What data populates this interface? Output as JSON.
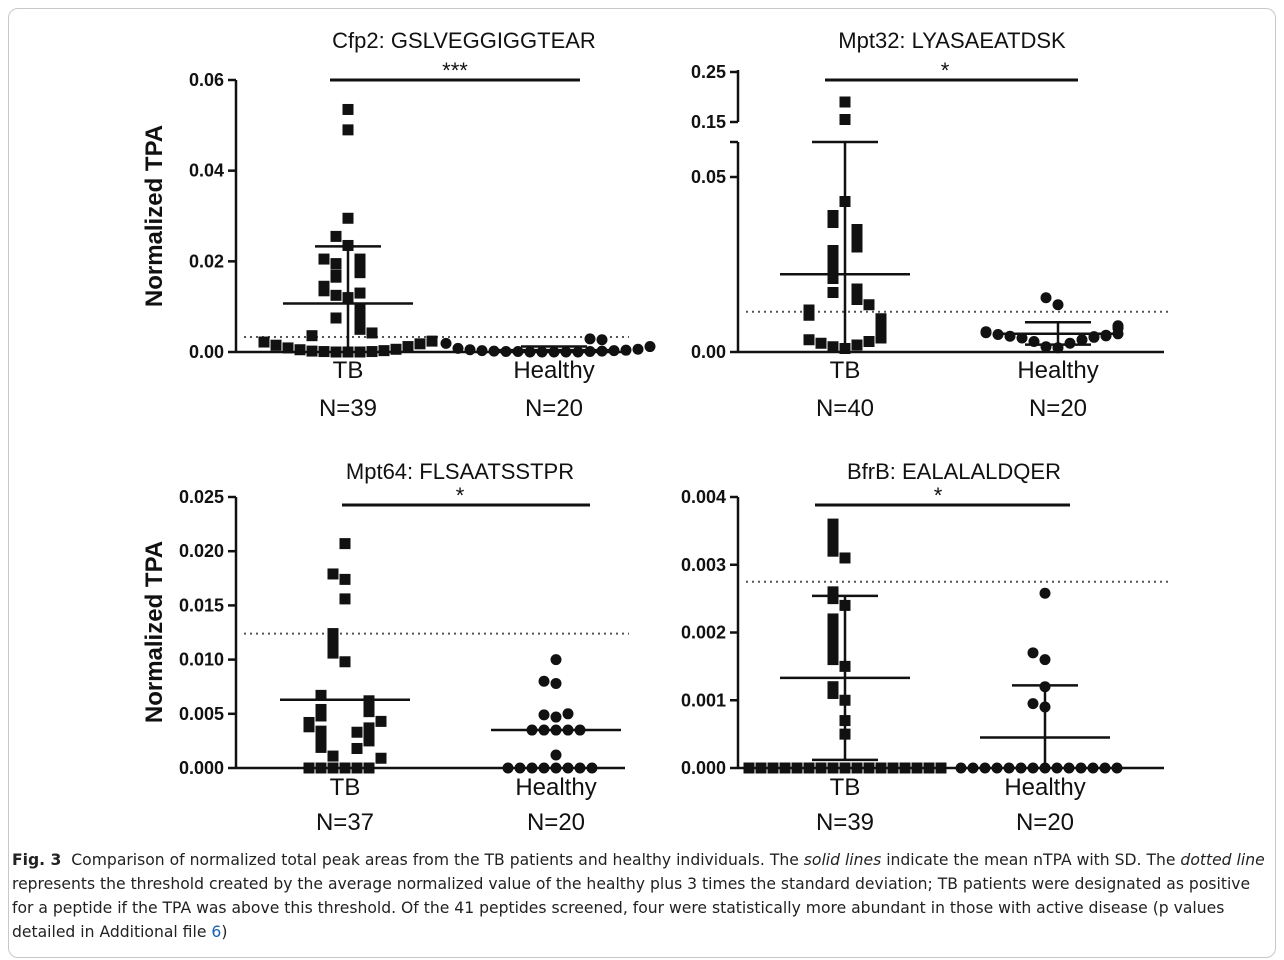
{
  "figure": {
    "caption_label": "Fig. 3",
    "caption_part1": "Comparison of normalized total peak areas from the TB patients and healthy individuals. The ",
    "caption_italic1": "solid lines",
    "caption_part2": " indicate the mean nTPA with SD. The ",
    "caption_italic2": "dotted line",
    "caption_part3": " represents the threshold created by the average normalized value of the healthy plus 3 times the standard deviation; TB patients were designated as positive for a peptide if the TPA was above this threshold. Of the 41 peptides screened, four were statistically more abundant in those with active disease (p values detailed in Additional file ",
    "caption_link": "6",
    "caption_part4": ")"
  },
  "chart_data": [
    {
      "type": "scatter",
      "title": "Cfp2: GSLVEGGIGGTEAR",
      "ylabel": "Normalized TPA",
      "ylim": [
        0,
        0.06
      ],
      "yticks": [
        "0.00",
        "0.02",
        "0.04",
        "0.06"
      ],
      "ytick_values": [
        0,
        0.02,
        0.04,
        0.06
      ],
      "categories": [
        "TB",
        "Healthy"
      ],
      "n_labels": [
        "N=39",
        "N=20"
      ],
      "significance": "***",
      "threshold": 0.0033,
      "colors": {
        "points": "#111111",
        "threshold": "#555555"
      },
      "series": [
        {
          "marker": "square",
          "values": [
            0.0535,
            0.049,
            0.0295,
            0.0255,
            0.0235,
            0.0205,
            0.0205,
            0.0195,
            0.0195,
            0.0175,
            0.017,
            0.0165,
            0.0145,
            0.0135,
            0.013,
            0.0125,
            0.012,
            0.0095,
            0.0085,
            0.0075,
            0.0065,
            0.005,
            0.0042,
            0.0036,
            0.0024,
            0.0022,
            0.0018,
            0.0015,
            0.0012,
            0.0009,
            0.0006,
            0.0005,
            0.0003,
            0.0002,
            0.0001,
            0.0001,
            0.0,
            0.0,
            0.0
          ],
          "mean": 0.0107,
          "sd_low": 0.0,
          "sd_high": 0.0233
        },
        {
          "marker": "circle",
          "values": [
            0.0029,
            0.0027,
            0.0019,
            0.0012,
            0.0008,
            0.0006,
            0.0005,
            0.0004,
            0.0003,
            0.0003,
            0.0002,
            0.0002,
            0.0001,
            0.0001,
            0.0001,
            0.0,
            0.0,
            0.0,
            0.0,
            0.0
          ],
          "mean": 0.0004,
          "sd_low": 0.0,
          "sd_high": 0.0012
        }
      ]
    },
    {
      "type": "scatter",
      "title": "Mpt32: LYASAEATDSK",
      "ylabel": "",
      "ylim": [
        0,
        0.25
      ],
      "broken_axis": {
        "lower": [
          0,
          0.06
        ],
        "upper": [
          0.12,
          0.25
        ]
      },
      "yticks": [
        "0.00",
        "0.05",
        "0.15",
        "0.25"
      ],
      "ytick_values": [
        0,
        0.05,
        0.15,
        0.25
      ],
      "categories": [
        "TB",
        "Healthy"
      ],
      "n_labels": [
        "N=40",
        "N=20"
      ],
      "significance": "*",
      "threshold": 0.0115,
      "colors": {
        "points": "#111111",
        "threshold": "#555555"
      },
      "series": [
        {
          "marker": "square",
          "values": [
            0.19,
            0.155,
            0.043,
            0.039,
            0.037,
            0.035,
            0.033,
            0.032,
            0.03,
            0.029,
            0.028,
            0.025,
            0.024,
            0.021,
            0.018,
            0.017,
            0.015,
            0.0135,
            0.012,
            0.0115,
            0.011,
            0.0105,
            0.0095,
            0.009,
            0.0085,
            0.008,
            0.0075,
            0.007,
            0.0065,
            0.006,
            0.0055,
            0.005,
            0.0045,
            0.004,
            0.0035,
            0.003,
            0.0025,
            0.002,
            0.0015,
            0.001
          ],
          "mean": 0.0222,
          "sd_low": -0.0005,
          "sd_high": 0.06
        },
        {
          "marker": "circle",
          "values": [
            0.0155,
            0.0135,
            0.0075,
            0.0072,
            0.0068,
            0.0058,
            0.0055,
            0.0052,
            0.005,
            0.0048,
            0.0046,
            0.0045,
            0.0044,
            0.0042,
            0.004,
            0.0035,
            0.003,
            0.0025,
            0.0015,
            0.0012
          ],
          "mean": 0.0052,
          "sd_low": 0.0021,
          "sd_high": 0.0085
        }
      ]
    },
    {
      "type": "scatter",
      "title": "Mpt64: FLSAATSSTPR",
      "ylabel": "Normalized TPA",
      "ylim": [
        0,
        0.025
      ],
      "yticks": [
        "0.000",
        "0.005",
        "0.010",
        "0.015",
        "0.020",
        "0.025"
      ],
      "ytick_values": [
        0,
        0.005,
        0.01,
        0.015,
        0.02,
        0.025
      ],
      "categories": [
        "TB",
        "Healthy"
      ],
      "n_labels": [
        "N=37",
        "N=20"
      ],
      "significance": "*",
      "threshold": 0.0124,
      "colors": {
        "points": "#111111",
        "threshold": "#555555"
      },
      "series": [
        {
          "marker": "square",
          "values": [
            0.0207,
            0.0179,
            0.0174,
            0.0156,
            0.0124,
            0.0114,
            0.0106,
            0.0098,
            0.0067,
            0.0062,
            0.0059,
            0.0058,
            0.0054,
            0.0052,
            0.005,
            0.0048,
            0.0043,
            0.0042,
            0.0038,
            0.0037,
            0.0035,
            0.0034,
            0.0033,
            0.003,
            0.0025,
            0.0022,
            0.002,
            0.0019,
            0.0018,
            0.0011,
            0.0009,
            0.0,
            0.0,
            0.0,
            0.0,
            0.0,
            0.0
          ],
          "mean": 0.0063,
          "sd_low": 0.0,
          "sd_high": 0.0
        },
        {
          "marker": "circle",
          "values": [
            0.01,
            0.008,
            0.0078,
            0.005,
            0.0049,
            0.0047,
            0.0035,
            0.0035,
            0.0035,
            0.0035,
            0.0035,
            0.0012,
            0.0,
            0.0,
            0.0,
            0.0,
            0.0,
            0.0,
            0.0,
            0.0
          ],
          "mean": 0.0035,
          "sd_low": 0.0,
          "sd_high": 0.0
        }
      ]
    },
    {
      "type": "scatter",
      "title": "BfrB: EALALALDQER",
      "ylabel": "",
      "ylim": [
        0,
        0.004
      ],
      "yticks": [
        "0.000",
        "0.001",
        "0.002",
        "0.003",
        "0.004"
      ],
      "ytick_values": [
        0,
        0.001,
        0.002,
        0.003,
        0.004
      ],
      "categories": [
        "TB",
        "Healthy"
      ],
      "n_labels": [
        "N=39",
        "N=20"
      ],
      "significance": "*",
      "threshold": 0.00275,
      "colors": {
        "points": "#111111",
        "threshold": "#555555"
      },
      "series": [
        {
          "marker": "square",
          "values": [
            0.0036,
            0.0035,
            0.0034,
            0.0033,
            0.0032,
            0.0031,
            0.0026,
            0.0025,
            0.0024,
            0.0022,
            0.0021,
            0.002,
            0.0019,
            0.0018,
            0.0017,
            0.0016,
            0.0015,
            0.0012,
            0.0011,
            0.001,
            0.0007,
            0.0005,
            0.0,
            0.0,
            0.0,
            0.0,
            0.0,
            0.0,
            0.0,
            0.0,
            0.0,
            0.0,
            0.0,
            0.0,
            0.0,
            0.0,
            0.0,
            0.0,
            0.0
          ],
          "mean": 0.00133,
          "sd_low": 0.00012,
          "sd_high": 0.00254
        },
        {
          "marker": "circle",
          "values": [
            0.00258,
            0.0017,
            0.0016,
            0.0012,
            0.00095,
            0.0009,
            0.0,
            0.0,
            0.0,
            0.0,
            0.0,
            0.0,
            0.0,
            0.0,
            0.0,
            0.0,
            0.0,
            0.0,
            0.0,
            0.0
          ],
          "mean": 0.00045,
          "sd_low": 0.0,
          "sd_high": 0.00122
        }
      ]
    }
  ]
}
